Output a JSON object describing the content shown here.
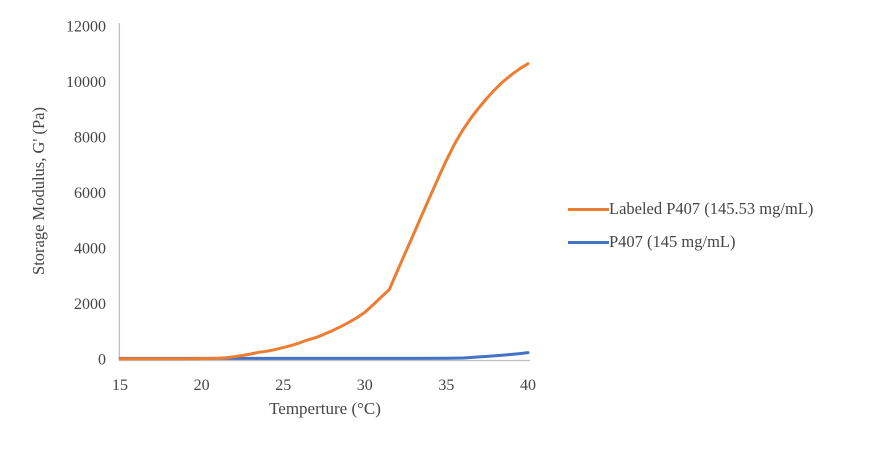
{
  "chart_data": {
    "type": "line",
    "title": "",
    "xlabel": "Temperture (°C)",
    "ylabel": "Storage Modulus, G' (Pa)",
    "xlim": [
      15,
      40
    ],
    "ylim": [
      0,
      12000
    ],
    "x_ticks": [
      15,
      20,
      25,
      30,
      35,
      40
    ],
    "y_ticks": [
      0,
      2000,
      4000,
      6000,
      8000,
      10000,
      12000
    ],
    "grid": false,
    "legend_position": "right-center",
    "axis_color": "#bfbfbf",
    "text_color": "#454545",
    "series": [
      {
        "name": "Labeled P407 (145.53 mg/mL)",
        "color": "#ed7d31",
        "x": [
          15,
          16,
          17,
          18,
          19,
          20,
          21,
          21.5,
          22,
          22.5,
          23,
          23.5,
          24,
          24.5,
          25,
          25.5,
          26,
          26.5,
          27,
          27.5,
          28,
          28.5,
          29,
          29.5,
          30,
          30.5,
          31,
          31.5,
          32,
          32.5,
          33,
          33.5,
          34,
          34.5,
          35,
          35.5,
          36,
          36.5,
          37,
          37.5,
          38,
          38.5,
          39,
          39.5,
          40
        ],
        "y": [
          10,
          10,
          10,
          10,
          12,
          15,
          25,
          45,
          80,
          125,
          180,
          240,
          280,
          340,
          410,
          490,
          580,
          690,
          770,
          890,
          1020,
          1160,
          1310,
          1480,
          1680,
          1950,
          2230,
          2500,
          3180,
          3850,
          4520,
          5190,
          5860,
          6520,
          7160,
          7750,
          8250,
          8680,
          9060,
          9410,
          9730,
          10010,
          10250,
          10460,
          10640
        ]
      },
      {
        "name": "P407 (145 mg/mL)",
        "color": "#4472c4",
        "x": [
          15,
          20,
          25,
          30,
          33,
          35,
          36,
          36.5,
          37,
          37.5,
          38,
          38.5,
          39,
          39.5,
          40
        ],
        "y": [
          20,
          20,
          20,
          20,
          22,
          25,
          35,
          55,
          75,
          95,
          120,
          140,
          165,
          195,
          230
        ]
      }
    ]
  }
}
